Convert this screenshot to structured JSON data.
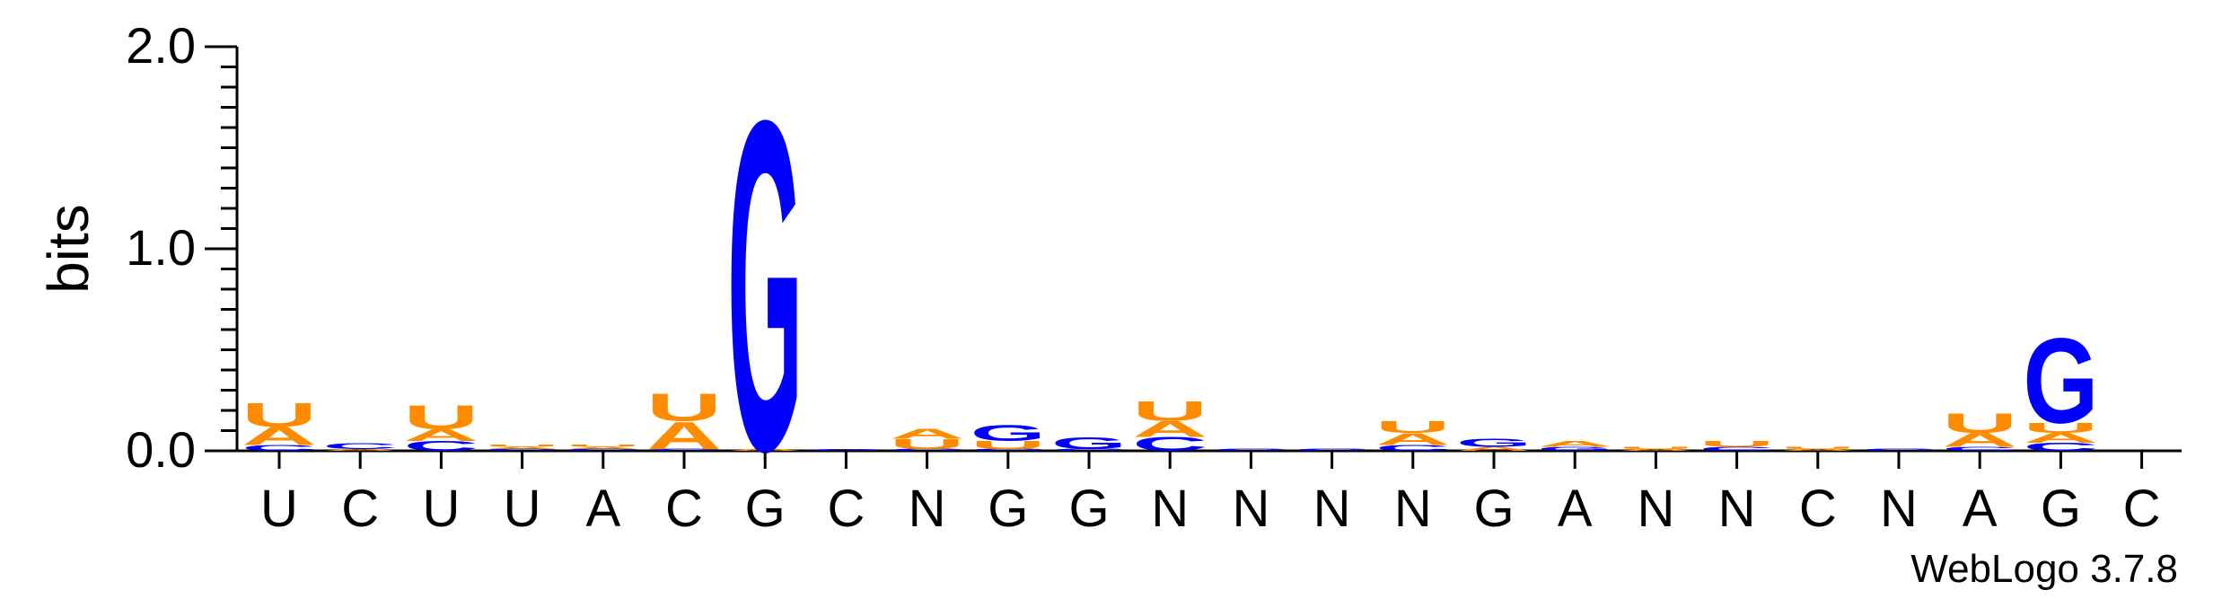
{
  "chart_data": {
    "type": "sequence-logo",
    "ylabel": "bits",
    "ylim": [
      0,
      2.0
    ],
    "yticks": [
      "0.0",
      "1.0",
      "2.0"
    ],
    "credit": "WebLogo 3.7.8",
    "colors": {
      "A": "#ff8c00",
      "U": "#ff8c00",
      "G": "#0000ff",
      "C": "#0000ff"
    },
    "positions": [
      {
        "label": "U",
        "stack": [
          {
            "letter": "C",
            "bits": 0.03
          },
          {
            "letter": "A",
            "bits": 0.09
          },
          {
            "letter": "U",
            "bits": 0.12
          }
        ]
      },
      {
        "label": "C",
        "stack": [
          {
            "letter": "A",
            "bits": 0.01
          },
          {
            "letter": "C",
            "bits": 0.03
          }
        ]
      },
      {
        "label": "U",
        "stack": [
          {
            "letter": "C",
            "bits": 0.05
          },
          {
            "letter": "A",
            "bits": 0.06
          },
          {
            "letter": "U",
            "bits": 0.12
          }
        ]
      },
      {
        "label": "U",
        "stack": [
          {
            "letter": "C",
            "bits": 0.01
          },
          {
            "letter": "A",
            "bits": 0.01
          },
          {
            "letter": "U",
            "bits": 0.01
          }
        ]
      },
      {
        "label": "A",
        "stack": [
          {
            "letter": "C",
            "bits": 0.01
          },
          {
            "letter": "A",
            "bits": 0.01
          },
          {
            "letter": "U",
            "bits": 0.01
          }
        ]
      },
      {
        "label": "C",
        "stack": [
          {
            "letter": "C",
            "bits": 0.01
          },
          {
            "letter": "A",
            "bits": 0.14
          },
          {
            "letter": "U",
            "bits": 0.14
          }
        ]
      },
      {
        "label": "G",
        "stack": [
          {
            "letter": "A",
            "bits": 0.01
          },
          {
            "letter": "G",
            "bits": 1.67
          }
        ]
      },
      {
        "label": "C",
        "stack": [
          {
            "letter": "G",
            "bits": 0.01
          }
        ]
      },
      {
        "label": "N",
        "stack": [
          {
            "letter": "C",
            "bits": 0.01
          },
          {
            "letter": "U",
            "bits": 0.05
          },
          {
            "letter": "A",
            "bits": 0.05
          }
        ]
      },
      {
        "label": "G",
        "stack": [
          {
            "letter": "C",
            "bits": 0.01
          },
          {
            "letter": "U",
            "bits": 0.04
          },
          {
            "letter": "G",
            "bits": 0.08
          }
        ]
      },
      {
        "label": "G",
        "stack": [
          {
            "letter": "C",
            "bits": 0.01
          },
          {
            "letter": "G",
            "bits": 0.06
          }
        ]
      },
      {
        "label": "N",
        "stack": [
          {
            "letter": "C",
            "bits": 0.07
          },
          {
            "letter": "A",
            "bits": 0.08
          },
          {
            "letter": "U",
            "bits": 0.1
          }
        ]
      },
      {
        "label": "N",
        "stack": [
          {
            "letter": "C",
            "bits": 0.01
          }
        ]
      },
      {
        "label": "N",
        "stack": [
          {
            "letter": "C",
            "bits": 0.01
          }
        ]
      },
      {
        "label": "N",
        "stack": [
          {
            "letter": "C",
            "bits": 0.03
          },
          {
            "letter": "A",
            "bits": 0.06
          },
          {
            "letter": "U",
            "bits": 0.06
          }
        ]
      },
      {
        "label": "G",
        "stack": [
          {
            "letter": "A",
            "bits": 0.02
          },
          {
            "letter": "G",
            "bits": 0.04
          }
        ]
      },
      {
        "label": "A",
        "stack": [
          {
            "letter": "G",
            "bits": 0.02
          },
          {
            "letter": "A",
            "bits": 0.03
          }
        ]
      },
      {
        "label": "N",
        "stack": [
          {
            "letter": "A",
            "bits": 0.01
          },
          {
            "letter": "U",
            "bits": 0.01
          }
        ]
      },
      {
        "label": "N",
        "stack": [
          {
            "letter": "C",
            "bits": 0.02
          },
          {
            "letter": "U",
            "bits": 0.03
          }
        ]
      },
      {
        "label": "C",
        "stack": [
          {
            "letter": "A",
            "bits": 0.01
          },
          {
            "letter": "U",
            "bits": 0.01
          }
        ]
      },
      {
        "label": "N",
        "stack": [
          {
            "letter": "C",
            "bits": 0.01
          }
        ]
      },
      {
        "label": "A",
        "stack": [
          {
            "letter": "C",
            "bits": 0.02
          },
          {
            "letter": "A",
            "bits": 0.07
          },
          {
            "letter": "U",
            "bits": 0.1
          }
        ]
      },
      {
        "label": "G",
        "stack": [
          {
            "letter": "C",
            "bits": 0.04
          },
          {
            "letter": "A",
            "bits": 0.05
          },
          {
            "letter": "U",
            "bits": 0.05
          },
          {
            "letter": "G",
            "bits": 0.43
          }
        ]
      },
      {
        "label": "C",
        "stack": []
      }
    ]
  }
}
